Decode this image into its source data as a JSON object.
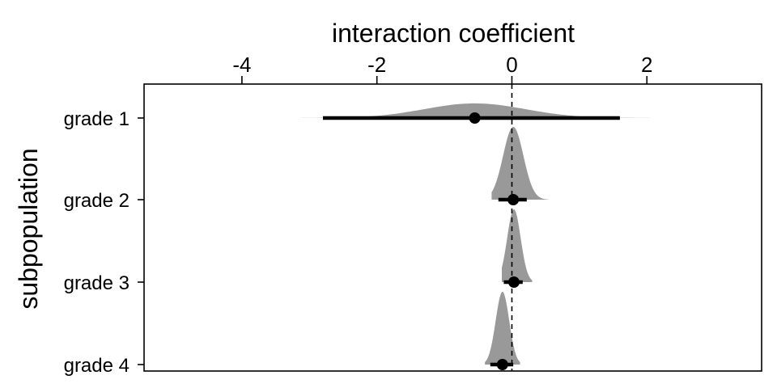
{
  "chart_data": {
    "type": "ridge-interval",
    "xlabel": "interaction coefficient",
    "ylabel": "subpopulation",
    "xlim": [
      -5.45,
      3.7
    ],
    "x_ticks": [
      -4,
      -2,
      0,
      2
    ],
    "x_tick_labels": [
      "-4",
      "-2",
      "0",
      "2"
    ],
    "x_axis_position": "top",
    "reference_line": 0,
    "categories": [
      "grade 1",
      "grade 2",
      "grade 3",
      "grade 4"
    ],
    "series": [
      {
        "name": "grade 1",
        "point": -0.55,
        "interval": [
          -2.8,
          1.6
        ],
        "sd": 0.75,
        "density_range": [
          -4.9,
          3.3
        ]
      },
      {
        "name": "grade 2",
        "point": 0.02,
        "interval": [
          -0.2,
          0.22
        ],
        "sd": 0.15,
        "density_range": [
          -0.3,
          0.55
        ]
      },
      {
        "name": "grade 3",
        "point": 0.03,
        "interval": [
          -0.12,
          0.16
        ],
        "sd": 0.1,
        "density_range": [
          -0.15,
          0.3
        ]
      },
      {
        "name": "grade 4",
        "point": -0.14,
        "interval": [
          -0.32,
          0.02
        ],
        "sd": 0.1,
        "density_range": [
          -0.4,
          0.12
        ]
      }
    ],
    "colors": {
      "density": "#999999",
      "interval": "#000000",
      "point": "#000000"
    },
    "grid": false,
    "legend": "none"
  }
}
